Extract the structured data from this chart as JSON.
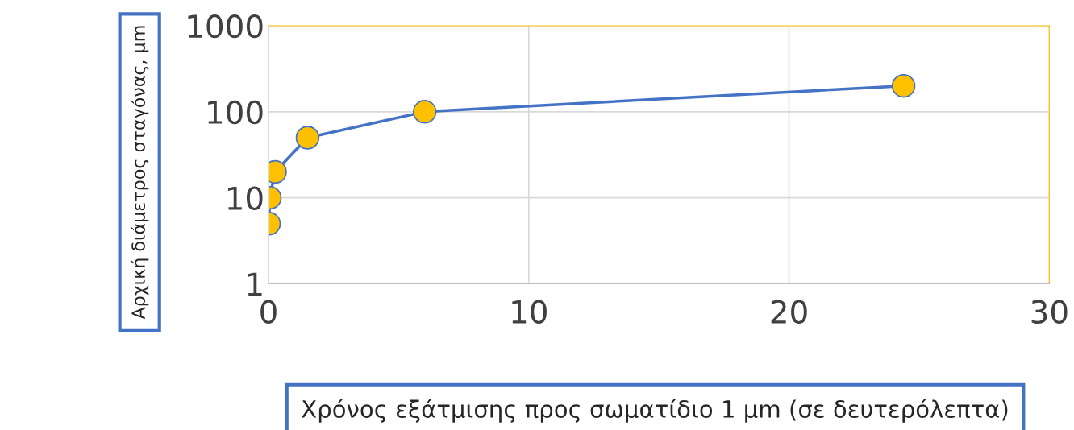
{
  "chart_data": {
    "type": "line",
    "xlabel": "Χρόνος εξάτμισης προς σωματίδιο 1 μm (σε δευτερόλεπτα)",
    "ylabel": "Αρχική διάμετρος σταγόνας, μm",
    "series": [
      {
        "color": "#4472c4",
        "x": [
          0.02,
          0.05,
          0.25,
          1.5,
          6.0,
          24.4
        ],
        "values": [
          5,
          10,
          20,
          50,
          100,
          200
        ]
      }
    ],
    "marker": "circle",
    "line_style": "solid",
    "log": "y",
    "grid": true,
    "xlim": [
      0,
      30
    ],
    "xticks": [
      0,
      10,
      20,
      30
    ],
    "ylim": [
      1,
      1000
    ],
    "yticks": [
      1,
      10,
      100,
      1000
    ]
  }
}
